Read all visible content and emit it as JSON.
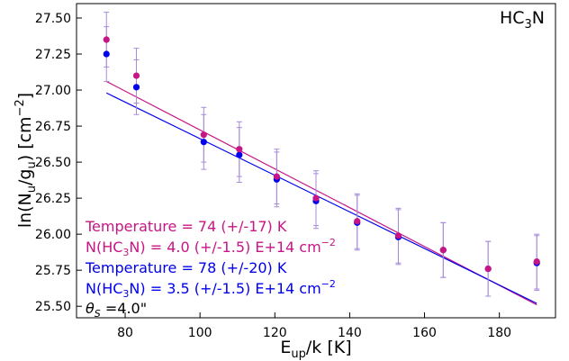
{
  "chart_data": {
    "type": "scatter",
    "title": "",
    "molecule": {
      "base": "HC",
      "sub": "3",
      "tail": "N"
    },
    "xlabel": {
      "base": "E",
      "sub": "up",
      "tail": "/k [K]"
    },
    "ylabel": {
      "p1": "ln(N",
      "s1": "u",
      "p2": "/g",
      "s2": "u",
      "p3": ") [cm",
      "sup": "−2",
      "p4": "]"
    },
    "xlim": [
      67,
      195
    ],
    "ylim": [
      25.42,
      27.6
    ],
    "xticks": [
      80,
      100,
      120,
      140,
      160,
      180
    ],
    "xtick_labels": [
      "80",
      "100",
      "120",
      "140",
      "160",
      "180"
    ],
    "yticks": [
      25.5,
      25.75,
      26.0,
      26.25,
      26.5,
      26.75,
      27.0,
      27.25,
      27.5
    ],
    "ytick_labels": [
      "25.50",
      "25.75",
      "26.00",
      "26.25",
      "26.50",
      "26.75",
      "27.00",
      "27.25",
      "27.50"
    ],
    "colors": {
      "magenta": "#c71585",
      "blue": "#0000ee",
      "errorbar": "#a78bd8"
    },
    "series": [
      {
        "color_key": "magenta",
        "points": [
          {
            "x": 75,
            "y": 27.35,
            "err": 0.19
          },
          {
            "x": 83,
            "y": 27.1,
            "err": 0.19
          },
          {
            "x": 101,
            "y": 26.69,
            "err": 0.19
          },
          {
            "x": 110.5,
            "y": 26.59,
            "err": 0.19
          },
          {
            "x": 120.5,
            "y": 26.4,
            "err": 0.19
          },
          {
            "x": 131,
            "y": 26.25,
            "err": 0.19
          },
          {
            "x": 142,
            "y": 26.09,
            "err": 0.19
          },
          {
            "x": 153,
            "y": 25.99,
            "err": 0.19
          },
          {
            "x": 165,
            "y": 25.89,
            "err": 0.19
          },
          {
            "x": 177,
            "y": 25.76,
            "err": 0.19
          },
          {
            "x": 190,
            "y": 25.81,
            "err": 0.19
          }
        ],
        "fit": {
          "x": [
            75,
            190
          ],
          "y": [
            27.06,
            25.51
          ]
        }
      },
      {
        "color_key": "blue",
        "points": [
          {
            "x": 75,
            "y": 27.25,
            "err": 0.19
          },
          {
            "x": 83,
            "y": 27.02,
            "err": 0.19
          },
          {
            "x": 101,
            "y": 26.64,
            "err": 0.19
          },
          {
            "x": 110.5,
            "y": 26.55,
            "err": 0.19
          },
          {
            "x": 120.5,
            "y": 26.38,
            "err": 0.19
          },
          {
            "x": 131,
            "y": 26.23,
            "err": 0.19
          },
          {
            "x": 142,
            "y": 26.08,
            "err": 0.19
          },
          {
            "x": 153,
            "y": 25.98,
            "err": 0.19
          },
          {
            "x": 165,
            "y": 25.89,
            "err": 0.19
          },
          {
            "x": 177,
            "y": 25.76,
            "err": 0.19
          },
          {
            "x": 190,
            "y": 25.8,
            "err": 0.19
          }
        ],
        "fit": {
          "x": [
            75,
            190
          ],
          "y": [
            26.98,
            25.52
          ]
        }
      }
    ],
    "annotations": {
      "temp_magenta": "Temperature = 74 (+/-17) K",
      "n_magenta": {
        "p1": "N(HC",
        "sub": "3",
        "p2": "N) = 4.0 (+/-1.5) E+14 cm",
        "sup": "−2"
      },
      "temp_blue": "Temperature = 78 (+/-20) K",
      "n_blue": {
        "p1": "N(HC",
        "sub": "3",
        "p2": "N) = 3.5 (+/-1.5) E+14 cm",
        "sup": "−2"
      },
      "theta": {
        "sym": "θ",
        "sub": "S",
        "tail": " =4.0\""
      }
    }
  }
}
